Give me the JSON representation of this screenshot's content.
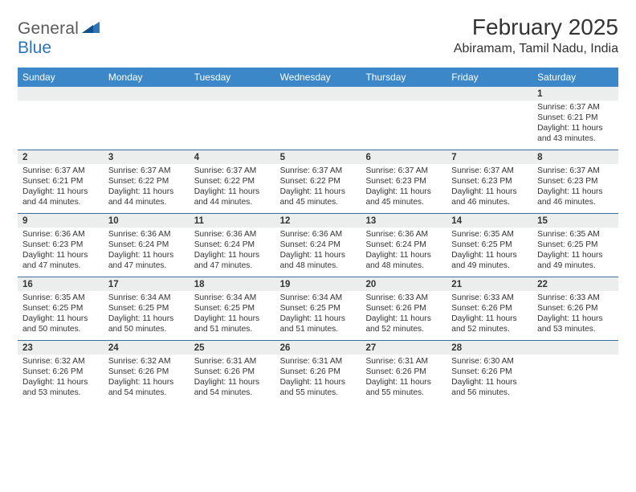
{
  "brand": {
    "word1": "General",
    "word2": "Blue"
  },
  "title": "February 2025",
  "location": "Abiramam, Tamil Nadu, India",
  "colors": {
    "header_bg": "#3b87c8",
    "header_text": "#ffffff",
    "daynum_bg": "#eceded",
    "rule": "#3a6fa0",
    "text": "#333333",
    "logo_gray": "#5a5a5a",
    "logo_blue": "#2c75b8"
  },
  "day_labels": [
    "Sunday",
    "Monday",
    "Tuesday",
    "Wednesday",
    "Thursday",
    "Friday",
    "Saturday"
  ],
  "weeks": [
    [
      {
        "n": "",
        "lines": []
      },
      {
        "n": "",
        "lines": []
      },
      {
        "n": "",
        "lines": []
      },
      {
        "n": "",
        "lines": []
      },
      {
        "n": "",
        "lines": []
      },
      {
        "n": "",
        "lines": []
      },
      {
        "n": "1",
        "lines": [
          "Sunrise: 6:37 AM",
          "Sunset: 6:21 PM",
          "Daylight: 11 hours and 43 minutes."
        ]
      }
    ],
    [
      {
        "n": "2",
        "lines": [
          "Sunrise: 6:37 AM",
          "Sunset: 6:21 PM",
          "Daylight: 11 hours and 44 minutes."
        ]
      },
      {
        "n": "3",
        "lines": [
          "Sunrise: 6:37 AM",
          "Sunset: 6:22 PM",
          "Daylight: 11 hours and 44 minutes."
        ]
      },
      {
        "n": "4",
        "lines": [
          "Sunrise: 6:37 AM",
          "Sunset: 6:22 PM",
          "Daylight: 11 hours and 44 minutes."
        ]
      },
      {
        "n": "5",
        "lines": [
          "Sunrise: 6:37 AM",
          "Sunset: 6:22 PM",
          "Daylight: 11 hours and 45 minutes."
        ]
      },
      {
        "n": "6",
        "lines": [
          "Sunrise: 6:37 AM",
          "Sunset: 6:23 PM",
          "Daylight: 11 hours and 45 minutes."
        ]
      },
      {
        "n": "7",
        "lines": [
          "Sunrise: 6:37 AM",
          "Sunset: 6:23 PM",
          "Daylight: 11 hours and 46 minutes."
        ]
      },
      {
        "n": "8",
        "lines": [
          "Sunrise: 6:37 AM",
          "Sunset: 6:23 PM",
          "Daylight: 11 hours and 46 minutes."
        ]
      }
    ],
    [
      {
        "n": "9",
        "lines": [
          "Sunrise: 6:36 AM",
          "Sunset: 6:23 PM",
          "Daylight: 11 hours and 47 minutes."
        ]
      },
      {
        "n": "10",
        "lines": [
          "Sunrise: 6:36 AM",
          "Sunset: 6:24 PM",
          "Daylight: 11 hours and 47 minutes."
        ]
      },
      {
        "n": "11",
        "lines": [
          "Sunrise: 6:36 AM",
          "Sunset: 6:24 PM",
          "Daylight: 11 hours and 47 minutes."
        ]
      },
      {
        "n": "12",
        "lines": [
          "Sunrise: 6:36 AM",
          "Sunset: 6:24 PM",
          "Daylight: 11 hours and 48 minutes."
        ]
      },
      {
        "n": "13",
        "lines": [
          "Sunrise: 6:36 AM",
          "Sunset: 6:24 PM",
          "Daylight: 11 hours and 48 minutes."
        ]
      },
      {
        "n": "14",
        "lines": [
          "Sunrise: 6:35 AM",
          "Sunset: 6:25 PM",
          "Daylight: 11 hours and 49 minutes."
        ]
      },
      {
        "n": "15",
        "lines": [
          "Sunrise: 6:35 AM",
          "Sunset: 6:25 PM",
          "Daylight: 11 hours and 49 minutes."
        ]
      }
    ],
    [
      {
        "n": "16",
        "lines": [
          "Sunrise: 6:35 AM",
          "Sunset: 6:25 PM",
          "Daylight: 11 hours and 50 minutes."
        ]
      },
      {
        "n": "17",
        "lines": [
          "Sunrise: 6:34 AM",
          "Sunset: 6:25 PM",
          "Daylight: 11 hours and 50 minutes."
        ]
      },
      {
        "n": "18",
        "lines": [
          "Sunrise: 6:34 AM",
          "Sunset: 6:25 PM",
          "Daylight: 11 hours and 51 minutes."
        ]
      },
      {
        "n": "19",
        "lines": [
          "Sunrise: 6:34 AM",
          "Sunset: 6:25 PM",
          "Daylight: 11 hours and 51 minutes."
        ]
      },
      {
        "n": "20",
        "lines": [
          "Sunrise: 6:33 AM",
          "Sunset: 6:26 PM",
          "Daylight: 11 hours and 52 minutes."
        ]
      },
      {
        "n": "21",
        "lines": [
          "Sunrise: 6:33 AM",
          "Sunset: 6:26 PM",
          "Daylight: 11 hours and 52 minutes."
        ]
      },
      {
        "n": "22",
        "lines": [
          "Sunrise: 6:33 AM",
          "Sunset: 6:26 PM",
          "Daylight: 11 hours and 53 minutes."
        ]
      }
    ],
    [
      {
        "n": "23",
        "lines": [
          "Sunrise: 6:32 AM",
          "Sunset: 6:26 PM",
          "Daylight: 11 hours and 53 minutes."
        ]
      },
      {
        "n": "24",
        "lines": [
          "Sunrise: 6:32 AM",
          "Sunset: 6:26 PM",
          "Daylight: 11 hours and 54 minutes."
        ]
      },
      {
        "n": "25",
        "lines": [
          "Sunrise: 6:31 AM",
          "Sunset: 6:26 PM",
          "Daylight: 11 hours and 54 minutes."
        ]
      },
      {
        "n": "26",
        "lines": [
          "Sunrise: 6:31 AM",
          "Sunset: 6:26 PM",
          "Daylight: 11 hours and 55 minutes."
        ]
      },
      {
        "n": "27",
        "lines": [
          "Sunrise: 6:31 AM",
          "Sunset: 6:26 PM",
          "Daylight: 11 hours and 55 minutes."
        ]
      },
      {
        "n": "28",
        "lines": [
          "Sunrise: 6:30 AM",
          "Sunset: 6:26 PM",
          "Daylight: 11 hours and 56 minutes."
        ]
      },
      {
        "n": "",
        "lines": []
      }
    ]
  ]
}
